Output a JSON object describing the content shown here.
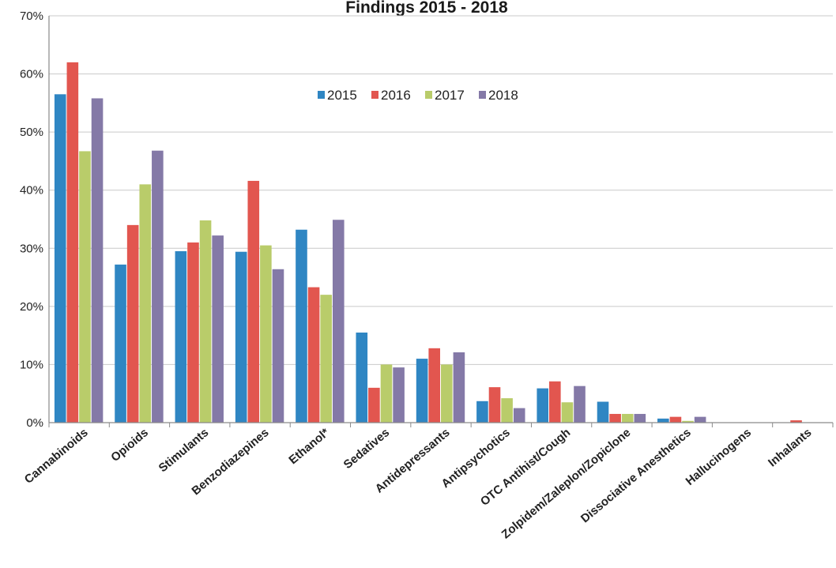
{
  "chart_data": {
    "type": "bar",
    "title": "Findings 2015 - 2018",
    "xlabel": "",
    "ylabel": "",
    "ylim": [
      0,
      70
    ],
    "yticks": [
      "0%",
      "10%",
      "20%",
      "30%",
      "40%",
      "50%",
      "60%",
      "70%"
    ],
    "grid": true,
    "legend_position": "top-center",
    "categories": [
      "Cannabinoids",
      "Opioids",
      "Stimulants",
      "Benzodiazepines",
      "Ethanol*",
      "Sedatives",
      "Antidepressants",
      "Antipsychotics",
      "OTC Antihist/Cough",
      "Zolpidem/Zaleplon/Zopiclone",
      "Dissociative Anesthetics",
      "Hallucinogens",
      "Inhalants"
    ],
    "series": [
      {
        "name": "2015",
        "color": "#2f86c3",
        "values": [
          56.5,
          27.2,
          29.5,
          29.4,
          33.2,
          15.5,
          11.0,
          3.7,
          5.9,
          3.6,
          0.7,
          0,
          0
        ]
      },
      {
        "name": "2016",
        "color": "#e2564f",
        "values": [
          62.0,
          34.0,
          31.0,
          41.6,
          23.3,
          6.0,
          12.8,
          6.1,
          7.1,
          1.5,
          1.0,
          0,
          0.4
        ]
      },
      {
        "name": "2017",
        "color": "#b9cc6a",
        "values": [
          46.7,
          41.0,
          34.8,
          30.5,
          22.0,
          10.0,
          10.0,
          4.2,
          3.5,
          1.5,
          0.3,
          0,
          0
        ]
      },
      {
        "name": "2018",
        "color": "#8479a7",
        "values": [
          55.8,
          46.8,
          32.2,
          26.4,
          34.9,
          9.5,
          12.1,
          2.5,
          6.3,
          1.5,
          1.0,
          0,
          0
        ]
      }
    ]
  }
}
